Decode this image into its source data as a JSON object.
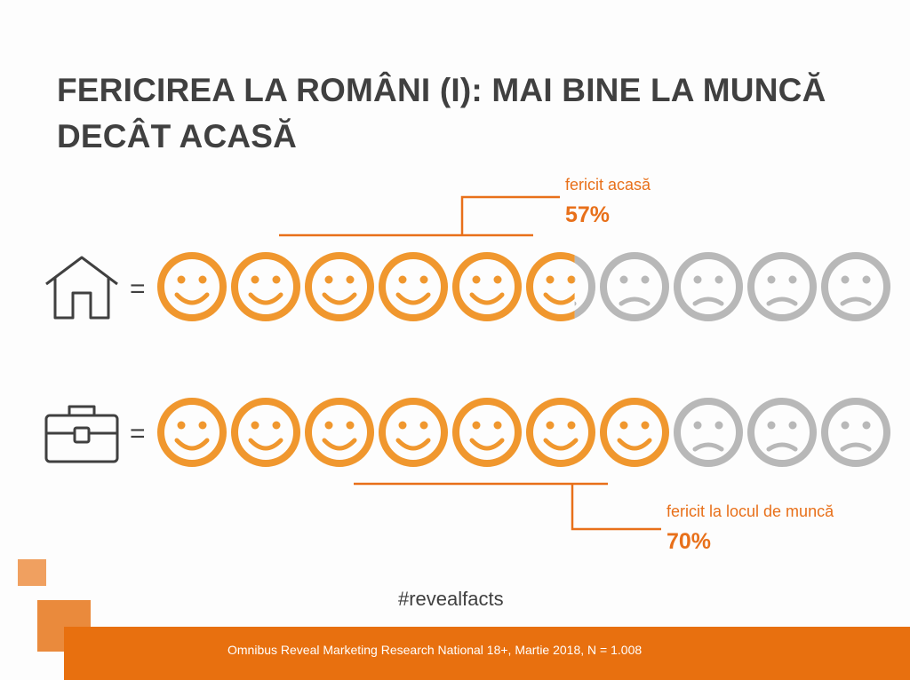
{
  "title": "FERICIREA LA ROMÂNI (I): MAI BINE LA MUNCĂ DECÂT ACASĂ",
  "equals_sign": "=",
  "home": {
    "icon": "house-icon",
    "label": "fericit acasă",
    "value": "57%",
    "happy_fraction": 0.57
  },
  "work": {
    "icon": "briefcase-icon",
    "label": "fericit la locul de muncă",
    "value": "70%",
    "happy_fraction": 0.7
  },
  "faces_per_row": 10,
  "hashtag": "#revealfacts",
  "footer": "Omnibus Reveal Marketing Research National 18+, Martie 2018, N = 1.008",
  "colors": {
    "accent": "#f0972e",
    "accent_dark": "#e8701a",
    "neutral_face": "#b8b8b8",
    "title": "#404040",
    "footer_bar": "#e8700f",
    "square_light": "#f0a060",
    "square_dark": "#ea8a3c"
  }
}
